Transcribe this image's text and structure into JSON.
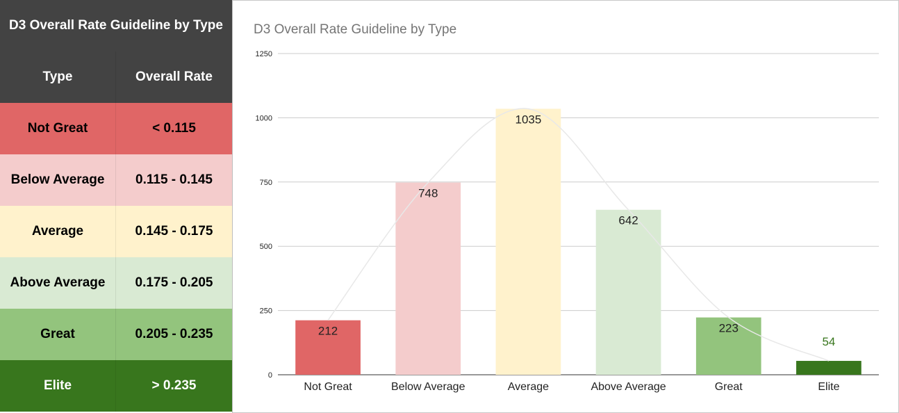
{
  "table": {
    "title": "D3 Overall Rate Guideline by Type",
    "headers": [
      "Type",
      "Overall Rate"
    ],
    "rows": [
      {
        "type": "Not Great",
        "rate": "< 0.115"
      },
      {
        "type": "Below Average",
        "rate": "0.115 - 0.145"
      },
      {
        "type": "Average",
        "rate": "0.145 - 0.175"
      },
      {
        "type": "Above Average",
        "rate": "0.175 - 0.205"
      },
      {
        "type": "Great",
        "rate": "0.205 - 0.235"
      },
      {
        "type": "Elite",
        "rate": "> 0.235"
      }
    ]
  },
  "colors": {
    "header_bg": "#434343",
    "header_text": "#ffffff",
    "row_bg": [
      "#e06666",
      "#f4cccc",
      "#fff2cc",
      "#d9ead3",
      "#93c47d",
      "#38761d"
    ],
    "row_text": [
      "#000000",
      "#000000",
      "#000000",
      "#000000",
      "#000000",
      "#ffffff"
    ],
    "bar": [
      "#e06666",
      "#f4cccc",
      "#fff2cc",
      "#d9ead3",
      "#93c47d",
      "#38761d"
    ],
    "trendline": "#e8e8e8",
    "gridline": "#cccccc",
    "label_default": "#222222",
    "label_elite": "#38761d"
  },
  "chart_data": {
    "type": "bar",
    "title": "D3 Overall Rate Guideline by Type",
    "categories": [
      "Not Great",
      "Below Average",
      "Average",
      "Above Average",
      "Great",
      "Elite"
    ],
    "values": [
      212,
      748,
      1035,
      642,
      223,
      54
    ],
    "ylim": [
      0,
      1250
    ],
    "yticks": [
      0,
      250,
      500,
      750,
      1000,
      1250
    ],
    "xlabel": "",
    "ylabel": "",
    "grid": true,
    "trendline": "smooth polynomial",
    "legend": "none"
  }
}
